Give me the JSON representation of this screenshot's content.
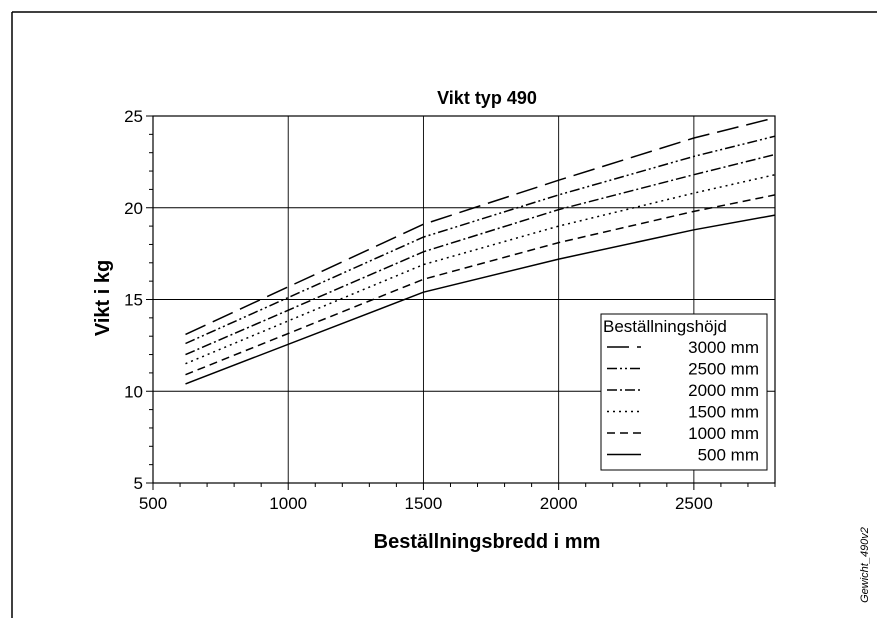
{
  "figure_id": "Gewicht_490v2",
  "chart_data": {
    "type": "line",
    "title": "Vikt typ 490",
    "xlabel": "Beställningsbredd i mm",
    "ylabel": "Vikt i kg",
    "xlim": [
      500,
      2800
    ],
    "ylim": [
      5,
      25
    ],
    "xticks": [
      "500",
      "1000",
      "1500",
      "2000",
      "2500"
    ],
    "yticks": [
      "5",
      "10",
      "15",
      "20",
      "25"
    ],
    "grid": true,
    "legend": {
      "title": "Beställningshöjd",
      "placement": "lower-right"
    },
    "x": [
      620,
      1500,
      2000,
      2500,
      2800
    ],
    "series": [
      {
        "name": "3000 mm",
        "style": "long-dash",
        "values": [
          13.1,
          19.1,
          21.5,
          23.8,
          24.9
        ]
      },
      {
        "name": "2500 mm",
        "style": "dash-dot-dot",
        "values": [
          12.6,
          18.4,
          20.7,
          22.8,
          23.9
        ]
      },
      {
        "name": "2000 mm",
        "style": "dash-dot",
        "values": [
          12.0,
          17.6,
          19.9,
          21.8,
          22.9
        ]
      },
      {
        "name": "1500 mm",
        "style": "dotted",
        "values": [
          11.5,
          16.9,
          19.0,
          20.8,
          21.8
        ]
      },
      {
        "name": "1000 mm",
        "style": "dashed",
        "values": [
          10.9,
          16.1,
          18.1,
          19.8,
          20.7
        ]
      },
      {
        "name": "500 mm",
        "style": "solid",
        "values": [
          10.4,
          15.4,
          17.2,
          18.8,
          19.6
        ]
      }
    ]
  }
}
